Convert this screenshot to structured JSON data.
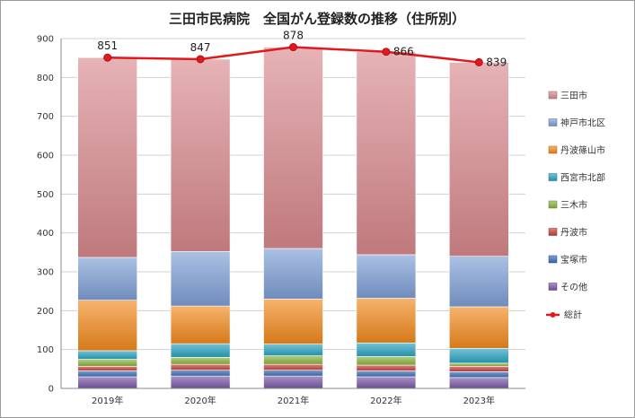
{
  "chart_data": {
    "type": "bar",
    "stacked": true,
    "title": "三田市民病院　全国がん登録数の推移（住所別）",
    "categories": [
      "2019年",
      "2020年",
      "2021年",
      "2022年",
      "2023年"
    ],
    "ylim": [
      0,
      900
    ],
    "yticks": [
      0,
      100,
      200,
      300,
      400,
      500,
      600,
      700,
      800,
      900
    ],
    "grid": true,
    "legend_position": "right",
    "series": [
      {
        "name": "その他",
        "color": "#7a5aa6",
        "values": [
          30,
          32,
          32,
          30,
          28
        ]
      },
      {
        "name": "宝塚市",
        "color": "#3a6fb5",
        "values": [
          15,
          15,
          15,
          15,
          15
        ]
      },
      {
        "name": "丹波市",
        "color": "#c8413c",
        "values": [
          12,
          15,
          15,
          15,
          14
        ]
      },
      {
        "name": "三木市",
        "color": "#8ab33f",
        "values": [
          18,
          18,
          22,
          22,
          8
        ]
      },
      {
        "name": "西宮市北部",
        "color": "#2aa3c0",
        "values": [
          22,
          35,
          30,
          35,
          38
        ]
      },
      {
        "name": "丹波篠山市",
        "color": "#f28a1e",
        "values": [
          130,
          97,
          116,
          115,
          107
        ]
      },
      {
        "name": "神戸市北区",
        "color": "#7e9fd6",
        "values": [
          110,
          140,
          130,
          112,
          130
        ]
      },
      {
        "name": "三田市",
        "color": "#d98a8e",
        "values": [
          514,
          495,
          518,
          522,
          499
        ]
      }
    ],
    "line_series": {
      "name": "総計",
      "color": "#e0191e",
      "values": [
        851,
        847,
        878,
        866,
        839
      ]
    }
  }
}
